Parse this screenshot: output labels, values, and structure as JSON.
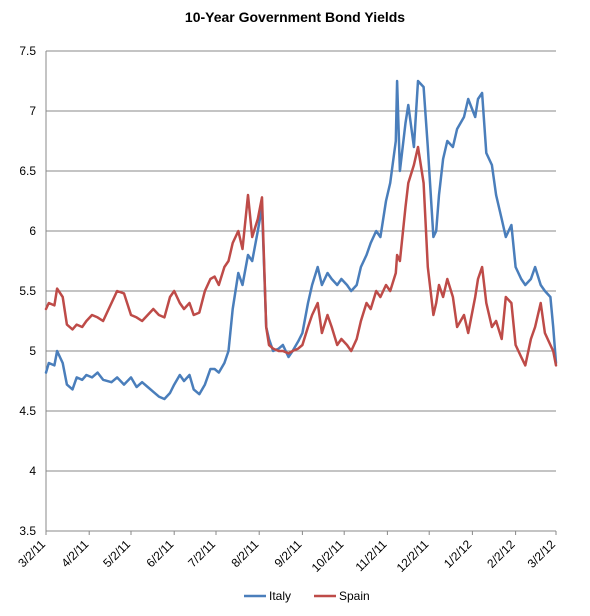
{
  "chart_data": {
    "type": "line",
    "title": "10-Year Government Bond Yields",
    "xlabel": "",
    "ylabel": "",
    "ylim": [
      3.5,
      7.5
    ],
    "yticks": [
      "3.5",
      "4",
      "4.5",
      "5",
      "5.5",
      "6",
      "6.5",
      "7",
      "7.5"
    ],
    "xticks": [
      "3/2/11",
      "4/2/11",
      "5/2/11",
      "6/2/11",
      "7/2/11",
      "8/2/11",
      "9/2/11",
      "10/2/11",
      "11/2/11",
      "12/2/11",
      "1/2/12",
      "2/2/12",
      "3/2/12"
    ],
    "grid": "horizontal",
    "legend": "bottom",
    "series": [
      {
        "name": "Italy",
        "color": "#4a7ebb",
        "points": [
          [
            "2011-03-02",
            4.82
          ],
          [
            "2011-03-04",
            4.9
          ],
          [
            "2011-03-08",
            4.88
          ],
          [
            "2011-03-10",
            5.0
          ],
          [
            "2011-03-14",
            4.9
          ],
          [
            "2011-03-17",
            4.72
          ],
          [
            "2011-03-21",
            4.68
          ],
          [
            "2011-03-24",
            4.78
          ],
          [
            "2011-03-28",
            4.76
          ],
          [
            "2011-03-31",
            4.8
          ],
          [
            "2011-04-04",
            4.78
          ],
          [
            "2011-04-08",
            4.82
          ],
          [
            "2011-04-12",
            4.76
          ],
          [
            "2011-04-18",
            4.74
          ],
          [
            "2011-04-22",
            4.78
          ],
          [
            "2011-04-27",
            4.72
          ],
          [
            "2011-05-02",
            4.78
          ],
          [
            "2011-05-06",
            4.7
          ],
          [
            "2011-05-10",
            4.74
          ],
          [
            "2011-05-14",
            4.7
          ],
          [
            "2011-05-18",
            4.66
          ],
          [
            "2011-05-22",
            4.62
          ],
          [
            "2011-05-26",
            4.6
          ],
          [
            "2011-05-30",
            4.65
          ],
          [
            "2011-06-02",
            4.72
          ],
          [
            "2011-06-06",
            4.8
          ],
          [
            "2011-06-09",
            4.75
          ],
          [
            "2011-06-13",
            4.8
          ],
          [
            "2011-06-16",
            4.68
          ],
          [
            "2011-06-20",
            4.64
          ],
          [
            "2011-06-24",
            4.72
          ],
          [
            "2011-06-28",
            4.85
          ],
          [
            "2011-07-01",
            4.85
          ],
          [
            "2011-07-04",
            4.82
          ],
          [
            "2011-07-08",
            4.9
          ],
          [
            "2011-07-11",
            5.0
          ],
          [
            "2011-07-14",
            5.35
          ],
          [
            "2011-07-18",
            5.65
          ],
          [
            "2011-07-21",
            5.55
          ],
          [
            "2011-07-25",
            5.8
          ],
          [
            "2011-07-28",
            5.75
          ],
          [
            "2011-08-01",
            6.0
          ],
          [
            "2011-08-04",
            6.2
          ],
          [
            "2011-08-07",
            5.2
          ],
          [
            "2011-08-09",
            5.1
          ],
          [
            "2011-08-12",
            5.0
          ],
          [
            "2011-08-16",
            5.02
          ],
          [
            "2011-08-19",
            5.05
          ],
          [
            "2011-08-23",
            4.95
          ],
          [
            "2011-08-26",
            5.0
          ],
          [
            "2011-08-30",
            5.08
          ],
          [
            "2011-09-02",
            5.15
          ],
          [
            "2011-09-06",
            5.4
          ],
          [
            "2011-09-09",
            5.55
          ],
          [
            "2011-09-13",
            5.7
          ],
          [
            "2011-09-16",
            5.55
          ],
          [
            "2011-09-20",
            5.65
          ],
          [
            "2011-09-23",
            5.6
          ],
          [
            "2011-09-27",
            5.55
          ],
          [
            "2011-09-30",
            5.6
          ],
          [
            "2011-10-04",
            5.55
          ],
          [
            "2011-10-07",
            5.5
          ],
          [
            "2011-10-11",
            5.55
          ],
          [
            "2011-10-14",
            5.7
          ],
          [
            "2011-10-18",
            5.8
          ],
          [
            "2011-10-21",
            5.9
          ],
          [
            "2011-10-25",
            6.0
          ],
          [
            "2011-10-28",
            5.95
          ],
          [
            "2011-11-01",
            6.25
          ],
          [
            "2011-11-04",
            6.4
          ],
          [
            "2011-11-08",
            6.75
          ],
          [
            "2011-11-09",
            7.25
          ],
          [
            "2011-11-11",
            6.5
          ],
          [
            "2011-11-15",
            6.9
          ],
          [
            "2011-11-17",
            7.05
          ],
          [
            "2011-11-21",
            6.7
          ],
          [
            "2011-11-24",
            7.25
          ],
          [
            "2011-11-28",
            7.2
          ],
          [
            "2011-12-01",
            6.7
          ],
          [
            "2011-12-05",
            5.95
          ],
          [
            "2011-12-07",
            6.0
          ],
          [
            "2011-12-09",
            6.3
          ],
          [
            "2011-12-12",
            6.6
          ],
          [
            "2011-12-15",
            6.75
          ],
          [
            "2011-12-19",
            6.7
          ],
          [
            "2011-12-22",
            6.85
          ],
          [
            "2011-12-27",
            6.95
          ],
          [
            "2011-12-30",
            7.1
          ],
          [
            "2012-01-04",
            6.95
          ],
          [
            "2012-01-06",
            7.1
          ],
          [
            "2012-01-09",
            7.15
          ],
          [
            "2012-01-12",
            6.65
          ],
          [
            "2012-01-16",
            6.55
          ],
          [
            "2012-01-19",
            6.3
          ],
          [
            "2012-01-23",
            6.1
          ],
          [
            "2012-01-26",
            5.95
          ],
          [
            "2012-01-30",
            6.05
          ],
          [
            "2012-02-02",
            5.7
          ],
          [
            "2012-02-06",
            5.6
          ],
          [
            "2012-02-09",
            5.55
          ],
          [
            "2012-02-13",
            5.6
          ],
          [
            "2012-02-16",
            5.7
          ],
          [
            "2012-02-20",
            5.55
          ],
          [
            "2012-02-23",
            5.5
          ],
          [
            "2012-02-27",
            5.45
          ],
          [
            "2012-02-29",
            5.2
          ],
          [
            "2012-03-02",
            4.9
          ]
        ]
      },
      {
        "name": "Spain",
        "color": "#be4b48",
        "points": [
          [
            "2011-03-02",
            5.35
          ],
          [
            "2011-03-04",
            5.4
          ],
          [
            "2011-03-08",
            5.38
          ],
          [
            "2011-03-10",
            5.52
          ],
          [
            "2011-03-14",
            5.45
          ],
          [
            "2011-03-17",
            5.22
          ],
          [
            "2011-03-21",
            5.18
          ],
          [
            "2011-03-24",
            5.22
          ],
          [
            "2011-03-28",
            5.2
          ],
          [
            "2011-03-31",
            5.25
          ],
          [
            "2011-04-04",
            5.3
          ],
          [
            "2011-04-08",
            5.28
          ],
          [
            "2011-04-12",
            5.25
          ],
          [
            "2011-04-18",
            5.4
          ],
          [
            "2011-04-22",
            5.5
          ],
          [
            "2011-04-27",
            5.48
          ],
          [
            "2011-05-02",
            5.3
          ],
          [
            "2011-05-06",
            5.28
          ],
          [
            "2011-05-10",
            5.25
          ],
          [
            "2011-05-14",
            5.3
          ],
          [
            "2011-05-18",
            5.35
          ],
          [
            "2011-05-22",
            5.3
          ],
          [
            "2011-05-26",
            5.28
          ],
          [
            "2011-05-30",
            5.45
          ],
          [
            "2011-06-02",
            5.5
          ],
          [
            "2011-06-06",
            5.4
          ],
          [
            "2011-06-09",
            5.35
          ],
          [
            "2011-06-13",
            5.4
          ],
          [
            "2011-06-16",
            5.3
          ],
          [
            "2011-06-20",
            5.32
          ],
          [
            "2011-06-24",
            5.5
          ],
          [
            "2011-06-28",
            5.6
          ],
          [
            "2011-07-01",
            5.62
          ],
          [
            "2011-07-04",
            5.55
          ],
          [
            "2011-07-08",
            5.7
          ],
          [
            "2011-07-11",
            5.75
          ],
          [
            "2011-07-14",
            5.9
          ],
          [
            "2011-07-18",
            6.0
          ],
          [
            "2011-07-21",
            5.85
          ],
          [
            "2011-07-25",
            6.3
          ],
          [
            "2011-07-28",
            5.95
          ],
          [
            "2011-08-01",
            6.1
          ],
          [
            "2011-08-04",
            6.28
          ],
          [
            "2011-08-07",
            5.2
          ],
          [
            "2011-08-09",
            5.05
          ],
          [
            "2011-08-12",
            5.02
          ],
          [
            "2011-08-16",
            5.0
          ],
          [
            "2011-08-19",
            5.0
          ],
          [
            "2011-08-23",
            4.98
          ],
          [
            "2011-08-26",
            5.0
          ],
          [
            "2011-08-30",
            5.02
          ],
          [
            "2011-09-02",
            5.05
          ],
          [
            "2011-09-06",
            5.2
          ],
          [
            "2011-09-09",
            5.3
          ],
          [
            "2011-09-13",
            5.4
          ],
          [
            "2011-09-16",
            5.15
          ],
          [
            "2011-09-20",
            5.3
          ],
          [
            "2011-09-23",
            5.2
          ],
          [
            "2011-09-27",
            5.05
          ],
          [
            "2011-09-30",
            5.1
          ],
          [
            "2011-10-04",
            5.05
          ],
          [
            "2011-10-07",
            5.0
          ],
          [
            "2011-10-11",
            5.1
          ],
          [
            "2011-10-14",
            5.25
          ],
          [
            "2011-10-18",
            5.4
          ],
          [
            "2011-10-21",
            5.35
          ],
          [
            "2011-10-25",
            5.5
          ],
          [
            "2011-10-28",
            5.45
          ],
          [
            "2011-11-01",
            5.55
          ],
          [
            "2011-11-04",
            5.5
          ],
          [
            "2011-11-08",
            5.65
          ],
          [
            "2011-11-09",
            5.8
          ],
          [
            "2011-11-11",
            5.75
          ],
          [
            "2011-11-15",
            6.2
          ],
          [
            "2011-11-17",
            6.4
          ],
          [
            "2011-11-21",
            6.55
          ],
          [
            "2011-11-24",
            6.7
          ],
          [
            "2011-11-28",
            6.4
          ],
          [
            "2011-12-01",
            5.7
          ],
          [
            "2011-12-05",
            5.3
          ],
          [
            "2011-12-07",
            5.4
          ],
          [
            "2011-12-09",
            5.55
          ],
          [
            "2011-12-12",
            5.45
          ],
          [
            "2011-12-15",
            5.6
          ],
          [
            "2011-12-19",
            5.45
          ],
          [
            "2011-12-22",
            5.2
          ],
          [
            "2011-12-27",
            5.3
          ],
          [
            "2011-12-30",
            5.15
          ],
          [
            "2012-01-04",
            5.45
          ],
          [
            "2012-01-06",
            5.6
          ],
          [
            "2012-01-09",
            5.7
          ],
          [
            "2012-01-12",
            5.4
          ],
          [
            "2012-01-16",
            5.2
          ],
          [
            "2012-01-19",
            5.25
          ],
          [
            "2012-01-23",
            5.1
          ],
          [
            "2012-01-26",
            5.45
          ],
          [
            "2012-01-30",
            5.4
          ],
          [
            "2012-02-02",
            5.05
          ],
          [
            "2012-02-06",
            4.95
          ],
          [
            "2012-02-09",
            4.88
          ],
          [
            "2012-02-13",
            5.1
          ],
          [
            "2012-02-16",
            5.2
          ],
          [
            "2012-02-20",
            5.4
          ],
          [
            "2012-02-23",
            5.15
          ],
          [
            "2012-02-27",
            5.05
          ],
          [
            "2012-02-29",
            5.0
          ],
          [
            "2012-03-02",
            4.88
          ]
        ]
      }
    ]
  }
}
